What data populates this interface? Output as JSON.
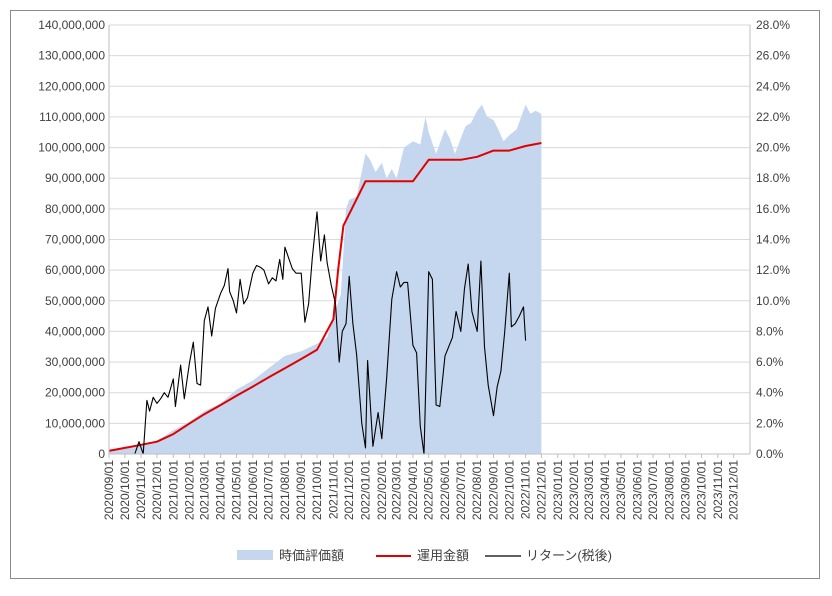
{
  "chart_data": {
    "type": "area",
    "title": "",
    "xlabel": "",
    "ylabel": "",
    "y_left_lim": [
      0,
      140000000
    ],
    "y_right_lim": [
      0,
      0.28
    ],
    "y_left_ticks": [
      "0",
      "10,000,000",
      "20,000,000",
      "30,000,000",
      "40,000,000",
      "50,000,000",
      "60,000,000",
      "70,000,000",
      "80,000,000",
      "90,000,000",
      "100,000,000",
      "110,000,000",
      "120,000,000",
      "130,000,000",
      "140,000,000"
    ],
    "y_right_ticks": [
      "0.0%",
      "2.0%",
      "4.0%",
      "6.0%",
      "8.0%",
      "10.0%",
      "12.0%",
      "14.0%",
      "16.0%",
      "18.0%",
      "20.0%",
      "22.0%",
      "24.0%",
      "26.0%",
      "28.0%"
    ],
    "x_tick_labels": [
      "2020/09/01",
      "2020/10/01",
      "2020/11/01",
      "2020/12/01",
      "2021/01/01",
      "2021/02/01",
      "2021/03/01",
      "2021/04/01",
      "2021/05/01",
      "2021/06/01",
      "2021/07/01",
      "2021/08/01",
      "2021/09/01",
      "2021/10/01",
      "2021/11/01",
      "2021/12/01",
      "2022/01/01",
      "2022/02/01",
      "2022/03/01",
      "2022/04/01",
      "2022/05/01",
      "2022/06/01",
      "2022/07/01",
      "2022/08/01",
      "2022/09/01",
      "2022/10/01",
      "2022/11/01",
      "2022/12/01",
      "2023/01/01",
      "2023/02/01",
      "2023/03/01",
      "2023/04/01",
      "2023/05/01",
      "2023/06/01",
      "2023/07/01",
      "2023/08/01",
      "2023/09/01",
      "2023/10/01",
      "2023/11/01",
      "2023/12/01"
    ],
    "grid": "horizontal",
    "legend_position": "bottom",
    "series": [
      {
        "name": "時価評価額",
        "kind": "area",
        "axis": "left",
        "color": "#c5d6ef",
        "points": [
          [
            "2020-09-01",
            1500000
          ],
          [
            "2020-10-01",
            2200000
          ],
          [
            "2020-11-01",
            3300000
          ],
          [
            "2020-12-01",
            4200000
          ],
          [
            "2021-01-01",
            7800000
          ],
          [
            "2021-02-01",
            10500000
          ],
          [
            "2021-03-01",
            14000000
          ],
          [
            "2021-04-01",
            16500000
          ],
          [
            "2021-05-01",
            21000000
          ],
          [
            "2021-06-01",
            24000000
          ],
          [
            "2021-07-01",
            28000000
          ],
          [
            "2021-08-01",
            32000000
          ],
          [
            "2021-09-01",
            33500000
          ],
          [
            "2021-10-01",
            36000000
          ],
          [
            "2021-10-20",
            38000000
          ],
          [
            "2021-11-01",
            45000000
          ],
          [
            "2021-11-15",
            52000000
          ],
          [
            "2021-11-25",
            80000000
          ],
          [
            "2021-12-01",
            83000000
          ],
          [
            "2021-12-15",
            84000000
          ],
          [
            "2022-01-01",
            98000000
          ],
          [
            "2022-01-10",
            96000000
          ],
          [
            "2022-01-20",
            92000000
          ],
          [
            "2022-02-01",
            95000000
          ],
          [
            "2022-02-10",
            90000000
          ],
          [
            "2022-02-20",
            93000000
          ],
          [
            "2022-03-01",
            90000000
          ],
          [
            "2022-03-15",
            100000000
          ],
          [
            "2022-04-01",
            102000000
          ],
          [
            "2022-04-15",
            101000000
          ],
          [
            "2022-04-25",
            110000000
          ],
          [
            "2022-05-01",
            105000000
          ],
          [
            "2022-05-15",
            98000000
          ],
          [
            "2022-06-01",
            106000000
          ],
          [
            "2022-06-10",
            103000000
          ],
          [
            "2022-06-20",
            98000000
          ],
          [
            "2022-07-01",
            103000000
          ],
          [
            "2022-07-10",
            107000000
          ],
          [
            "2022-07-20",
            108000000
          ],
          [
            "2022-08-01",
            112000000
          ],
          [
            "2022-08-10",
            114000000
          ],
          [
            "2022-08-20",
            110000000
          ],
          [
            "2022-09-01",
            109000000
          ],
          [
            "2022-09-10",
            106000000
          ],
          [
            "2022-09-20",
            102000000
          ],
          [
            "2022-10-01",
            104000000
          ],
          [
            "2022-10-15",
            106000000
          ],
          [
            "2022-11-01",
            114000000
          ],
          [
            "2022-11-10",
            111000000
          ],
          [
            "2022-11-20",
            112000000
          ],
          [
            "2022-12-01",
            111000000
          ]
        ]
      },
      {
        "name": "運用金額",
        "kind": "step",
        "axis": "left",
        "color": "#e00000",
        "points": [
          [
            "2020-09-01",
            1000000
          ],
          [
            "2020-10-01",
            2000000
          ],
          [
            "2020-11-01",
            3000000
          ],
          [
            "2020-12-01",
            4000000
          ],
          [
            "2021-01-01",
            6500000
          ],
          [
            "2021-02-01",
            10000000
          ],
          [
            "2021-03-01",
            13000000
          ],
          [
            "2021-04-01",
            16000000
          ],
          [
            "2021-05-01",
            19000000
          ],
          [
            "2021-06-01",
            22000000
          ],
          [
            "2021-07-01",
            25000000
          ],
          [
            "2021-08-01",
            28000000
          ],
          [
            "2021-09-01",
            31000000
          ],
          [
            "2021-10-01",
            34000000
          ],
          [
            "2021-11-01",
            44000000
          ],
          [
            "2021-11-10",
            60000000
          ],
          [
            "2021-11-20",
            74500000
          ],
          [
            "2022-01-01",
            89000000
          ],
          [
            "2022-02-01",
            89000000
          ],
          [
            "2022-03-01",
            89000000
          ],
          [
            "2022-04-01",
            89000000
          ],
          [
            "2022-05-01",
            96000000
          ],
          [
            "2022-06-01",
            96000000
          ],
          [
            "2022-07-01",
            96000000
          ],
          [
            "2022-08-01",
            97000000
          ],
          [
            "2022-09-01",
            99000000
          ],
          [
            "2022-10-01",
            99000000
          ],
          [
            "2022-11-01",
            100500000
          ],
          [
            "2022-12-01",
            101500000
          ]
        ]
      },
      {
        "name": "リターン(税後)",
        "kind": "line",
        "axis": "right",
        "color": "#000000",
        "points": [
          [
            "2020-10-20",
            0.0
          ],
          [
            "2020-10-28",
            0.008
          ],
          [
            "2020-11-05",
            0.0
          ],
          [
            "2020-11-12",
            0.035
          ],
          [
            "2020-11-17",
            0.028
          ],
          [
            "2020-11-24",
            0.037
          ],
          [
            "2020-12-01",
            0.033
          ],
          [
            "2020-12-08",
            0.036
          ],
          [
            "2020-12-15",
            0.04
          ],
          [
            "2020-12-22",
            0.037
          ],
          [
            "2021-01-01",
            0.049
          ],
          [
            "2021-01-05",
            0.031
          ],
          [
            "2021-01-15",
            0.058
          ],
          [
            "2021-01-22",
            0.036
          ],
          [
            "2021-02-01",
            0.06
          ],
          [
            "2021-02-08",
            0.073
          ],
          [
            "2021-02-15",
            0.046
          ],
          [
            "2021-02-22",
            0.045
          ],
          [
            "2021-03-01",
            0.087
          ],
          [
            "2021-03-08",
            0.096
          ],
          [
            "2021-03-15",
            0.077
          ],
          [
            "2021-03-22",
            0.095
          ],
          [
            "2021-04-01",
            0.105
          ],
          [
            "2021-04-08",
            0.11
          ],
          [
            "2021-04-15",
            0.121
          ],
          [
            "2021-04-18",
            0.106
          ],
          [
            "2021-04-25",
            0.1
          ],
          [
            "2021-05-01",
            0.092
          ],
          [
            "2021-05-08",
            0.114
          ],
          [
            "2021-05-15",
            0.098
          ],
          [
            "2021-05-22",
            0.102
          ],
          [
            "2021-06-01",
            0.118
          ],
          [
            "2021-06-08",
            0.123
          ],
          [
            "2021-06-15",
            0.122
          ],
          [
            "2021-06-22",
            0.12
          ],
          [
            "2021-07-01",
            0.111
          ],
          [
            "2021-07-08",
            0.115
          ],
          [
            "2021-07-15",
            0.113
          ],
          [
            "2021-07-22",
            0.127
          ],
          [
            "2021-07-28",
            0.114
          ],
          [
            "2021-08-01",
            0.135
          ],
          [
            "2021-08-08",
            0.128
          ],
          [
            "2021-08-15",
            0.121
          ],
          [
            "2021-08-22",
            0.118
          ],
          [
            "2021-09-01",
            0.118
          ],
          [
            "2021-09-08",
            0.086
          ],
          [
            "2021-09-15",
            0.098
          ],
          [
            "2021-09-22",
            0.128
          ],
          [
            "2021-10-01",
            0.158
          ],
          [
            "2021-10-08",
            0.126
          ],
          [
            "2021-10-15",
            0.143
          ],
          [
            "2021-10-20",
            0.125
          ],
          [
            "2021-10-28",
            0.11
          ],
          [
            "2021-11-05",
            0.098
          ],
          [
            "2021-11-12",
            0.06
          ],
          [
            "2021-11-18",
            0.08
          ],
          [
            "2021-11-25",
            0.085
          ],
          [
            "2021-12-01",
            0.116
          ],
          [
            "2021-12-08",
            0.085
          ],
          [
            "2021-12-15",
            0.065
          ],
          [
            "2021-12-25",
            0.02
          ],
          [
            "2022-01-01",
            0.004
          ],
          [
            "2022-01-05",
            0.061
          ],
          [
            "2022-01-15",
            0.005
          ],
          [
            "2022-01-25",
            0.027
          ],
          [
            "2022-02-01",
            0.01
          ],
          [
            "2022-02-10",
            0.049
          ],
          [
            "2022-02-20",
            0.101
          ],
          [
            "2022-03-01",
            0.119
          ],
          [
            "2022-03-08",
            0.109
          ],
          [
            "2022-03-15",
            0.112
          ],
          [
            "2022-03-22",
            0.112
          ],
          [
            "2022-04-01",
            0.071
          ],
          [
            "2022-04-08",
            0.066
          ],
          [
            "2022-04-15",
            0.018
          ],
          [
            "2022-04-22",
            0.0
          ],
          [
            "2022-05-01",
            0.119
          ],
          [
            "2022-05-08",
            0.114
          ],
          [
            "2022-05-15",
            0.032
          ],
          [
            "2022-05-22",
            0.031
          ],
          [
            "2022-06-01",
            0.064
          ],
          [
            "2022-06-15",
            0.076
          ],
          [
            "2022-06-22",
            0.093
          ],
          [
            "2022-07-01",
            0.08
          ],
          [
            "2022-07-08",
            0.108
          ],
          [
            "2022-07-15",
            0.124
          ],
          [
            "2022-07-22",
            0.093
          ],
          [
            "2022-08-01",
            0.08
          ],
          [
            "2022-08-08",
            0.126
          ],
          [
            "2022-08-15",
            0.07
          ],
          [
            "2022-08-22",
            0.045
          ],
          [
            "2022-09-01",
            0.025
          ],
          [
            "2022-09-08",
            0.044
          ],
          [
            "2022-09-15",
            0.054
          ],
          [
            "2022-09-22",
            0.079
          ],
          [
            "2022-10-01",
            0.118
          ],
          [
            "2022-10-05",
            0.083
          ],
          [
            "2022-10-12",
            0.085
          ],
          [
            "2022-10-20",
            0.09
          ],
          [
            "2022-10-28",
            0.096
          ],
          [
            "2022-11-01",
            0.074
          ]
        ]
      }
    ]
  }
}
